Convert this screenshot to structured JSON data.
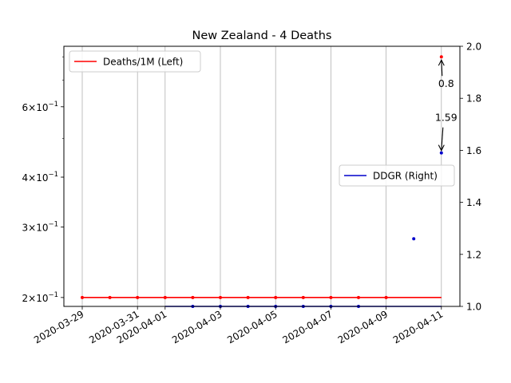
{
  "chart_data": {
    "type": "line",
    "title": "New Zealand - 4 Deaths",
    "x": [
      "2020-03-29",
      "2020-03-30",
      "2020-03-31",
      "2020-04-01",
      "2020-04-02",
      "2020-04-03",
      "2020-04-04",
      "2020-04-05",
      "2020-04-06",
      "2020-04-07",
      "2020-04-08",
      "2020-04-09",
      "2020-04-10",
      "2020-04-11"
    ],
    "x_ticks": [
      "2020-03-29",
      "2020-03-31",
      "2020-04-01",
      "2020-04-03",
      "2020-04-05",
      "2020-04-07",
      "2020-04-09",
      "2020-04-11"
    ],
    "left_axis": {
      "scale": "log",
      "ylim": [
        0.19,
        0.85
      ],
      "tick_values": [
        0.2,
        0.3,
        0.4,
        0.6
      ],
      "tick_labels": [
        {
          "mant": "2",
          "exp": "−1"
        },
        {
          "mant": "3",
          "exp": "−1"
        },
        {
          "mant": "4",
          "exp": "−1"
        },
        {
          "mant": "6",
          "exp": "−1"
        }
      ]
    },
    "right_axis": {
      "scale": "linear",
      "ylim": [
        1.0,
        2.0
      ],
      "tick_values": [
        1.0,
        1.2,
        1.4,
        1.6,
        1.8,
        2.0
      ],
      "tick_labels": [
        "1.0",
        "1.2",
        "1.4",
        "1.6",
        "1.8",
        "2.0"
      ]
    },
    "series": [
      {
        "name": "Deaths/1M (Left)",
        "axis": "left",
        "color": "#ff0000",
        "line_values": [
          0.2,
          0.2,
          0.2,
          0.2,
          0.2,
          0.2,
          0.2,
          0.2,
          0.2,
          0.2,
          0.2,
          0.2,
          0.2,
          0.2
        ],
        "point_dates": [
          "2020-03-29",
          "2020-03-30",
          "2020-03-31",
          "2020-04-01",
          "2020-04-02",
          "2020-04-03",
          "2020-04-04",
          "2020-04-05",
          "2020-04-06",
          "2020-04-07",
          "2020-04-08",
          "2020-04-09",
          "2020-04-11"
        ],
        "point_values": [
          0.2,
          0.2,
          0.2,
          0.2,
          0.2,
          0.2,
          0.2,
          0.2,
          0.2,
          0.2,
          0.2,
          0.2,
          0.8
        ]
      },
      {
        "name": "DDGR (Right)",
        "axis": "right",
        "color": "#0000cc",
        "line_dates": [
          "2020-04-01",
          "2020-04-11"
        ],
        "line_values": [
          1.0,
          1.0
        ],
        "point_dates": [
          "2020-04-02",
          "2020-04-03",
          "2020-04-04",
          "2020-04-05",
          "2020-04-06",
          "2020-04-07",
          "2020-04-08",
          "2020-04-10",
          "2020-04-11"
        ],
        "point_values": [
          1.0,
          1.0,
          1.0,
          1.0,
          1.0,
          1.0,
          1.0,
          1.26,
          1.59
        ]
      }
    ],
    "annotations": [
      {
        "text": "0.8",
        "date": "2020-04-11",
        "value": 0.8,
        "axis": "left"
      },
      {
        "text": "1.59",
        "date": "2020-04-11",
        "value": 1.59,
        "axis": "right"
      }
    ],
    "legends": [
      {
        "placement": "upper-left",
        "entries": [
          "Deaths/1M (Left)"
        ]
      },
      {
        "placement": "center-right",
        "entries": [
          "DDGR (Right)"
        ]
      }
    ],
    "grid": "x-major"
  }
}
